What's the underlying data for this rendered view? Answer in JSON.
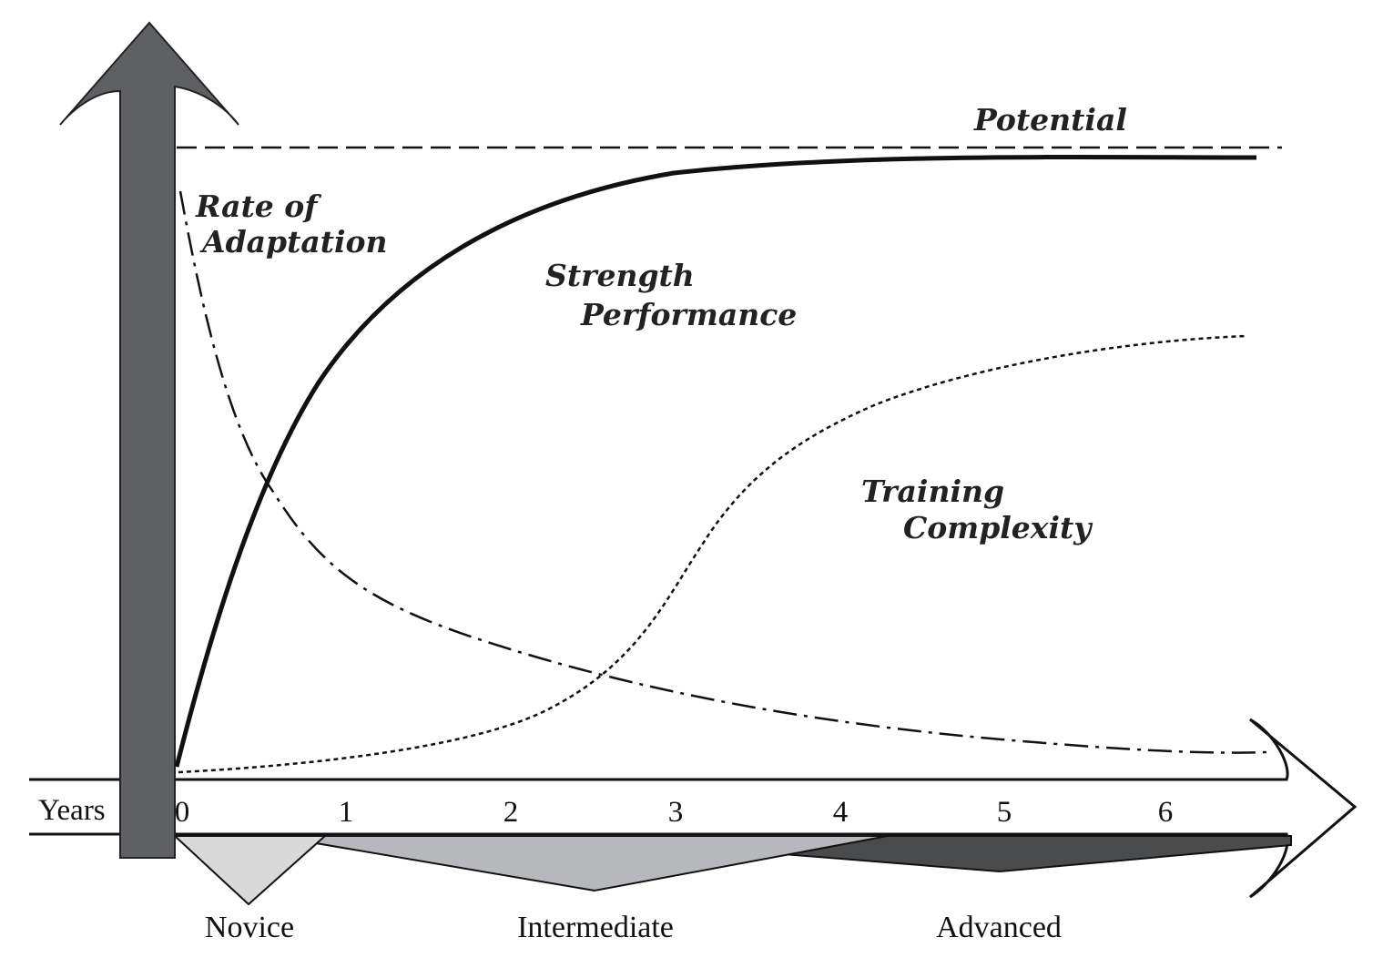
{
  "axis": {
    "x_label": "Years",
    "ticks": [
      "0",
      "1",
      "2",
      "3",
      "4",
      "5",
      "6"
    ]
  },
  "curves": {
    "potential": "Potential",
    "rate_line1": "Rate of",
    "rate_line2": "Adaptation",
    "strength_line1": "Strength",
    "strength_line2": "Performance",
    "training_line1": "Training",
    "training_line2": "Complexity"
  },
  "levels": {
    "novice": "Novice",
    "intermediate": "Intermediate",
    "advanced": "Advanced"
  },
  "colors": {
    "axis_arrow": "#5f6064",
    "novice_fill": "#d9d9da",
    "intermediate_fill": "#b7b8bb",
    "advanced_fill": "#4a4b4d",
    "line": "#111111"
  }
}
